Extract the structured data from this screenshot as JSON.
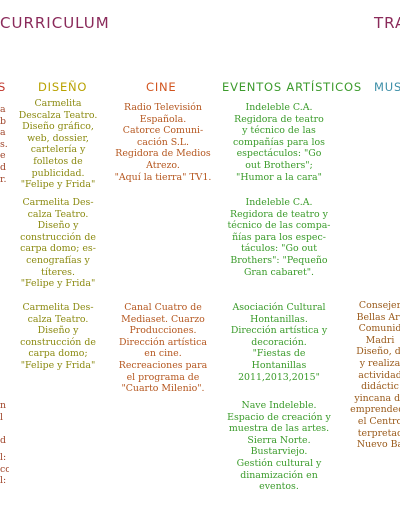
{
  "header": {
    "left_title": "CURRICULUM",
    "right_title": "TRA"
  },
  "colors": {
    "header": "#8a2a5a",
    "col_left": "#c0342a",
    "col_diseno": "#b9a200",
    "col_cine": "#d2541e",
    "col_eventos": "#3d9b2d",
    "col_musica": "#3d8fa8",
    "entry_diseno": "#8b8a10",
    "entry_cine": "#b5571f",
    "entry_eventos": "#3a9b2a",
    "entry_musica": "#9a5a1a",
    "entry_left": "#a0452a"
  },
  "columns": {
    "left_cut": {
      "title": "S",
      "entries": [
        "a\nb\na\ns.\ne\nd\nr.",
        "n\nl\n\nd",
        "l:\ncon\nl:"
      ]
    },
    "diseno": {
      "title": "DISEÑO",
      "entries": [
        "Carmelita\nDescalza Teatro.\nDiseño gráfico,\nweb, dossier,\ncartelería y\nfolletos de\npublicidad.\n\"Felipe y Frida\"",
        "Carmelita Des-\ncalza Teatro.\nDiseño y\nconstrucción de\ncarpa domo; es-\ncenografías y\ntíteres.\n\"Felipe y Frida\"",
        "Carmelita Des-\ncalza Teatro.\nDiseño y\nconstrucción de\ncarpa domo;\n\"Felipe y Frida\""
      ]
    },
    "cine": {
      "title": "CINE",
      "entries": [
        "Radio Televisión\nEspañola.\nCatorce Comuni-\ncación S.L.\nRegidora de Medios\nAtrezo.\n\"Aquí la tierra\" TV1.",
        "Canal Cuatro de\nMediaset. Cuarzo\nProducciones.\nDirección artística\nen cine.\nRecreaciones para\nel programa de\n\"Cuarto Milenio\"."
      ]
    },
    "eventos": {
      "title": "EVENTOS ARTÍSTICOS",
      "entries": [
        "Indeleble C.A.\nRegidora de teatro\ny técnico de las\ncompañías para los\nespectáculos: \"Go\nout Brothers\";\n\"Humor a la cara\"",
        "Indeleble C.A.\nRegidora de teatro  y\ntécnico de las compa-\nñías para los espec-\ntáculos: \"Go out\nBrothers\": \"Pequeño\nGran cabaret\".",
        "Asociación Cultural\nHontanillas.\nDirección artística y\ndecoración.\n\"Fiestas de\nHontanillas\n2011,2013,2015\"",
        "Nave Indeleble.\nEspacio de creación y\nmuestra de las artes.\nSierra Norte.\nBustarviejo.\nGestión cultural y\ndinamización en\neventos."
      ]
    },
    "musica": {
      "title": "MUSI",
      "entries": [
        "Consejer\nBellas Art\nComunid\nMadri\nDiseño, di\ny realiza\nactividad\ndidáctic\nyincana de\nemprendedo\nel Centro\nterpretac\nNuevo Ba"
      ]
    }
  }
}
